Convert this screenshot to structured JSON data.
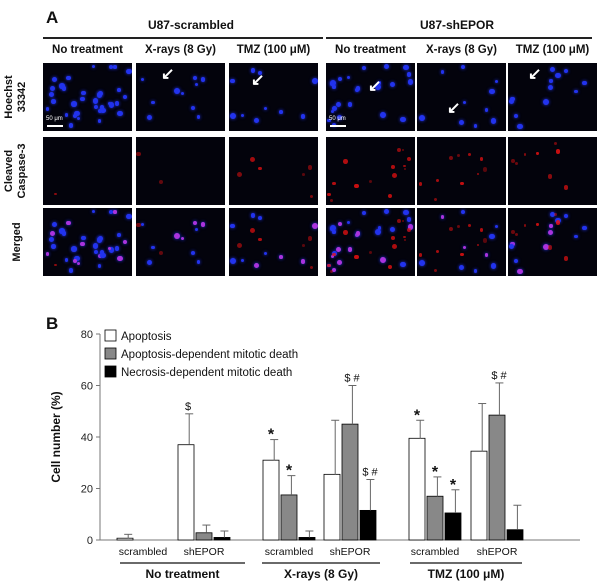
{
  "panel_a": {
    "letter": "A",
    "groups": [
      "U87-scrambled",
      "U87-shEPOR"
    ],
    "columns": [
      "No treatment",
      "X-rays (8 Gy)",
      "TMZ (100 μM)",
      "No treatment",
      "X-rays (8 Gy)",
      "TMZ (100 μM)"
    ],
    "rows": [
      {
        "line1": "Hoechst",
        "line2": "33342"
      },
      {
        "line1": "Cleaved",
        "line2": "Caspase-3"
      },
      {
        "line1": "Merged",
        "line2": ""
      }
    ],
    "scale_bar_label": "50 μm",
    "colors": {
      "nuclei": "#2233ee",
      "caspase": "#ee1111",
      "merged": "#aa33dd"
    }
  },
  "panel_b": {
    "letter": "B",
    "chart_data": {
      "type": "bar",
      "ylabel": "Cell number (%)",
      "ylim": [
        0,
        80
      ],
      "yticks": [
        0,
        20,
        40,
        60,
        80
      ],
      "categories": [
        "scrambled",
        "shEPOR",
        "scrambled",
        "shEPOR",
        "scrambled",
        "shEPOR"
      ],
      "groups": [
        "No treatment",
        "X-rays (8 Gy)",
        "TMZ (100 μM)"
      ],
      "series": [
        {
          "name": "Apoptosis",
          "color": "#ffffff",
          "values": [
            0.7,
            37,
            31,
            25.5,
            39.5,
            34.5
          ],
          "errors": [
            1.5,
            12,
            8,
            21,
            7,
            18.5
          ],
          "annotations": [
            "",
            "$",
            "*",
            "",
            "*",
            ""
          ]
        },
        {
          "name": "Apoptosis-dependent mitotic death",
          "color": "#888888",
          "values": [
            0,
            2.8,
            17.5,
            45,
            17,
            48.5
          ],
          "errors": [
            0,
            3,
            7.5,
            15,
            7.5,
            12.5
          ],
          "annotations": [
            "",
            "",
            "*",
            "$ #",
            "*",
            "$ #"
          ]
        },
        {
          "name": "Necrosis-dependent mitotic death",
          "color": "#000000",
          "values": [
            0,
            1,
            1,
            11.5,
            10.5,
            4
          ],
          "errors": [
            0,
            2.5,
            2.5,
            12,
            9,
            9.5
          ],
          "annotations": [
            "",
            "",
            "",
            "$ #",
            "*",
            ""
          ]
        }
      ]
    }
  }
}
